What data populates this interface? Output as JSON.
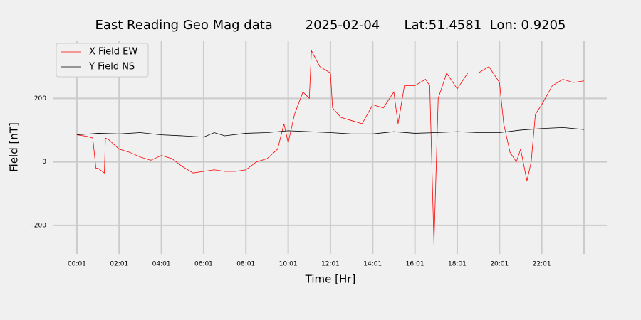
{
  "chart_data": {
    "type": "line",
    "title": "East Reading Geo Mag data        2025-02-04      Lat:51.4581  Lon: 0.9205",
    "xlabel": "Time  [Hr]",
    "ylabel": "Field  [nT]",
    "xlim": [
      -1.11,
      25.08
    ],
    "ylim": [
      -290,
      380
    ],
    "xticks": [
      {
        "value": 0,
        "label": "00:01"
      },
      {
        "value": 2,
        "label": "02:01"
      },
      {
        "value": 4,
        "label": "04:01"
      },
      {
        "value": 6,
        "label": "06:01"
      },
      {
        "value": 8,
        "label": "08:01"
      },
      {
        "value": 10,
        "label": "10:01"
      },
      {
        "value": 12,
        "label": "12:01"
      },
      {
        "value": 14,
        "label": "14:01"
      },
      {
        "value": 16,
        "label": "16:01"
      },
      {
        "value": 18,
        "label": "18:01"
      },
      {
        "value": 20,
        "label": "20:01"
      },
      {
        "value": 22,
        "label": "22:01"
      },
      {
        "value": 24,
        "label": null
      }
    ],
    "yticks": [
      {
        "value": -200,
        "label": "−200"
      },
      0,
      200
    ],
    "grid": true,
    "legend": "upper left",
    "series": [
      {
        "name": "X Field EW",
        "color": "#ff0000",
        "x": [
          0,
          0.5,
          0.75,
          0.9,
          1.0,
          1.3,
          1.35,
          1.5,
          2,
          2.5,
          3,
          3.5,
          4,
          4.5,
          5,
          5.5,
          6,
          6.5,
          7,
          7.5,
          8,
          8.5,
          9,
          9.5,
          9.8,
          10,
          10.3,
          10.7,
          11,
          11.1,
          11.5,
          12,
          12.1,
          12.5,
          13,
          13.5,
          14,
          14.5,
          15,
          15.2,
          15.5,
          16,
          16.5,
          16.7,
          16.9,
          17.1,
          17.5,
          18,
          18.5,
          19,
          19.5,
          20,
          20.2,
          20.5,
          20.8,
          21,
          21.3,
          21.5,
          21.7,
          22,
          22.5,
          23,
          23.5,
          24
        ],
        "values": [
          85,
          80,
          75,
          -20,
          -20,
          -35,
          75,
          70,
          40,
          30,
          15,
          5,
          20,
          10,
          -15,
          -35,
          -30,
          -25,
          -30,
          -30,
          -25,
          0,
          10,
          40,
          120,
          60,
          150,
          220,
          200,
          350,
          300,
          280,
          170,
          140,
          130,
          120,
          180,
          170,
          220,
          120,
          240,
          240,
          260,
          240,
          -260,
          200,
          280,
          230,
          280,
          280,
          300,
          250,
          120,
          30,
          0,
          40,
          -60,
          0,
          150,
          180,
          240,
          260,
          250,
          255
        ]
      },
      {
        "name": "Y Field NS",
        "color": "#000000",
        "x": [
          0,
          1,
          2,
          3,
          4,
          5,
          6,
          6.5,
          7,
          8,
          9,
          10,
          11,
          12,
          13,
          14,
          15,
          16,
          17,
          18,
          19,
          20,
          21,
          22,
          23,
          24
        ],
        "values": [
          85,
          90,
          88,
          92,
          85,
          82,
          78,
          92,
          82,
          90,
          92,
          98,
          95,
          92,
          88,
          88,
          95,
          90,
          92,
          95,
          92,
          92,
          100,
          105,
          108,
          102
        ]
      }
    ]
  }
}
